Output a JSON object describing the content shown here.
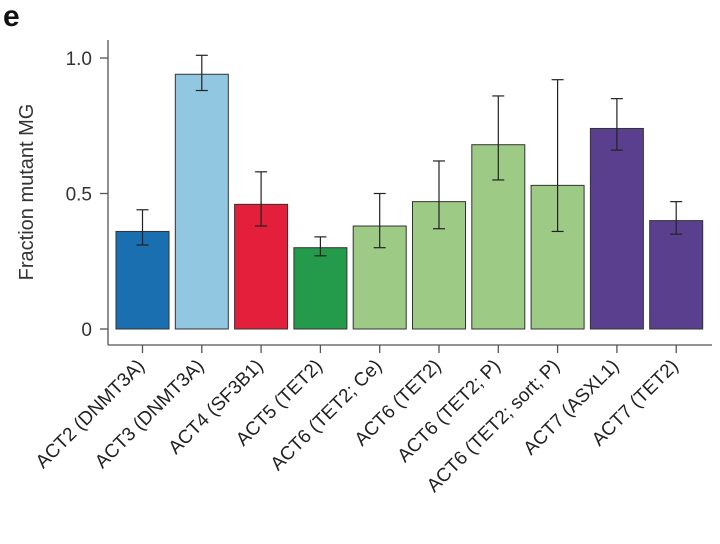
{
  "panel_label": "e",
  "chart_data": {
    "type": "bar",
    "title": "",
    "xlabel": "",
    "ylabel": "Fraction mutant MG",
    "ylim": [
      0,
      1.05
    ],
    "yticks": [
      0,
      0.5,
      1.0
    ],
    "ytick_labels": [
      "0",
      "0.5",
      "1.0"
    ],
    "grid": false,
    "categories": [
      "ACT2 (DNMT3A)",
      "ACT3 (DNMT3A)",
      "ACT4 (SF3B1)",
      "ACT5 (TET2)",
      "ACT6 (TET2; Ce)",
      "ACT6 (TET2)",
      "ACT6 (TET2; P)",
      "ACT6 (TET2; sort; P)",
      "ACT7 (ASXL1)",
      "ACT7 (TET2)"
    ],
    "values": [
      0.36,
      0.94,
      0.46,
      0.3,
      0.38,
      0.47,
      0.68,
      0.53,
      0.74,
      0.4
    ],
    "error_low": [
      0.31,
      0.88,
      0.38,
      0.27,
      0.3,
      0.37,
      0.55,
      0.36,
      0.66,
      0.35
    ],
    "error_high": [
      0.44,
      1.01,
      0.58,
      0.34,
      0.5,
      0.62,
      0.86,
      0.92,
      0.85,
      0.47
    ],
    "colors": [
      "#1a6fb0",
      "#92c7e1",
      "#e31f3b",
      "#249a4b",
      "#9dcb86",
      "#9dcb86",
      "#9dcb86",
      "#9dcb86",
      "#5b3f8f",
      "#5b3f8f"
    ]
  }
}
